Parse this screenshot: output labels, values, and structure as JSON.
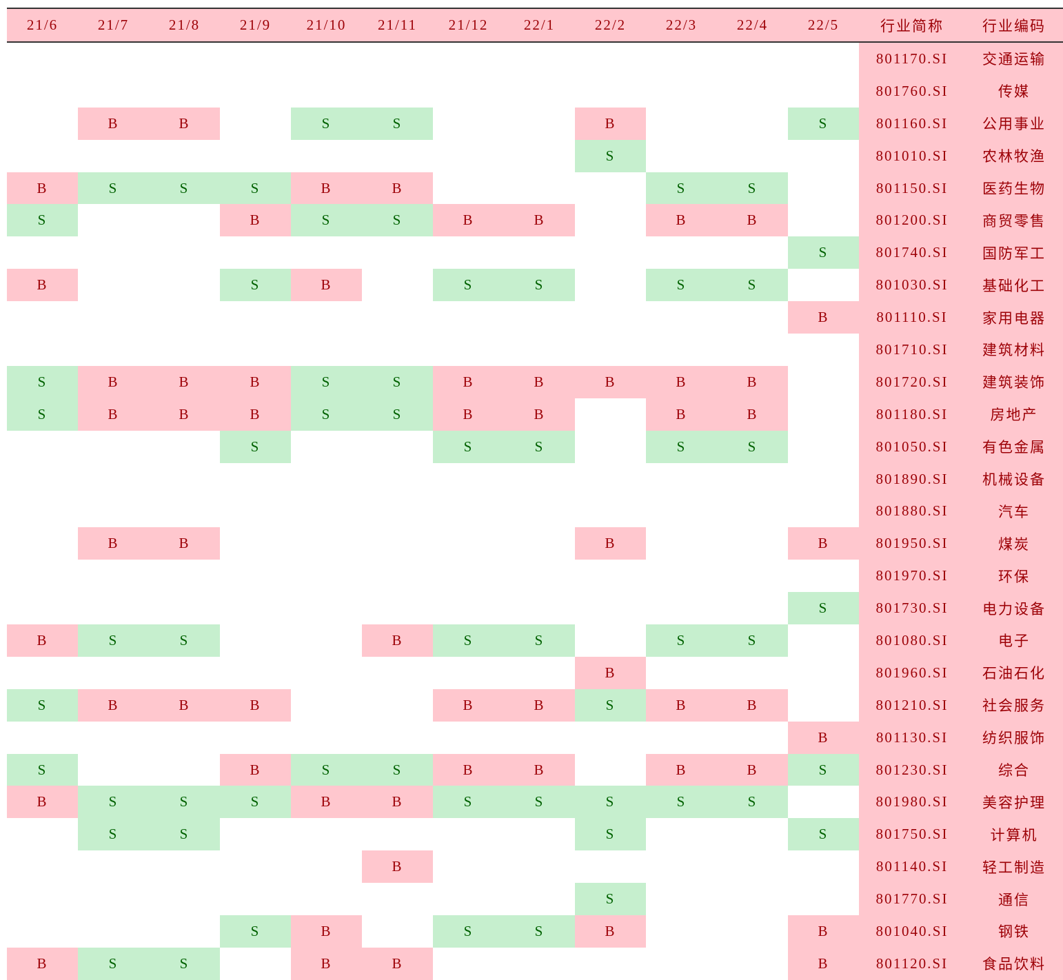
{
  "table": {
    "header": [
      "21/6",
      "21/7",
      "21/8",
      "21/9",
      "21/10",
      "21/11",
      "21/12",
      "22/1",
      "22/2",
      "22/3",
      "22/4",
      "22/5",
      "行业简称",
      "行业编码"
    ],
    "rows": [
      [
        null,
        null,
        null,
        null,
        null,
        null,
        null,
        null,
        null,
        null,
        null,
        null,
        "801170.SI",
        "交通运输"
      ],
      [
        null,
        null,
        null,
        null,
        null,
        null,
        null,
        null,
        null,
        null,
        null,
        null,
        "801760.SI",
        "传媒"
      ],
      [
        null,
        "B",
        "B",
        null,
        "S",
        "S",
        null,
        null,
        "B",
        null,
        null,
        "S",
        "801160.SI",
        "公用事业"
      ],
      [
        null,
        null,
        null,
        null,
        null,
        null,
        null,
        null,
        "S",
        null,
        null,
        null,
        "801010.SI",
        "农林牧渔"
      ],
      [
        "B",
        "S",
        "S",
        "S",
        "B",
        "B",
        null,
        null,
        null,
        "S",
        "S",
        null,
        "801150.SI",
        "医药生物"
      ],
      [
        "S",
        null,
        null,
        "B",
        "S",
        "S",
        "B",
        "B",
        null,
        "B",
        "B",
        null,
        "801200.SI",
        "商贸零售"
      ],
      [
        null,
        null,
        null,
        null,
        null,
        null,
        null,
        null,
        null,
        null,
        null,
        "S",
        "801740.SI",
        "国防军工"
      ],
      [
        "B",
        null,
        null,
        "S",
        "B",
        null,
        "S",
        "S",
        null,
        "S",
        "S",
        null,
        "801030.SI",
        "基础化工"
      ],
      [
        null,
        null,
        null,
        null,
        null,
        null,
        null,
        null,
        null,
        null,
        null,
        "B",
        "801110.SI",
        "家用电器"
      ],
      [
        null,
        null,
        null,
        null,
        null,
        null,
        null,
        null,
        null,
        null,
        null,
        null,
        "801710.SI",
        "建筑材料"
      ],
      [
        "S",
        "B",
        "B",
        "B",
        "S",
        "S",
        "B",
        "B",
        "B",
        "B",
        "B",
        null,
        "801720.SI",
        "建筑装饰"
      ],
      [
        "S",
        "B",
        "B",
        "B",
        "S",
        "S",
        "B",
        "B",
        null,
        "B",
        "B",
        null,
        "801180.SI",
        "房地产"
      ],
      [
        null,
        null,
        null,
        "S",
        null,
        null,
        "S",
        "S",
        null,
        "S",
        "S",
        null,
        "801050.SI",
        "有色金属"
      ],
      [
        null,
        null,
        null,
        null,
        null,
        null,
        null,
        null,
        null,
        null,
        null,
        null,
        "801890.SI",
        "机械设备"
      ],
      [
        null,
        null,
        null,
        null,
        null,
        null,
        null,
        null,
        null,
        null,
        null,
        null,
        "801880.SI",
        "汽车"
      ],
      [
        null,
        "B",
        "B",
        null,
        null,
        null,
        null,
        null,
        "B",
        null,
        null,
        "B",
        "801950.SI",
        "煤炭"
      ],
      [
        null,
        null,
        null,
        null,
        null,
        null,
        null,
        null,
        null,
        null,
        null,
        null,
        "801970.SI",
        "环保"
      ],
      [
        null,
        null,
        null,
        null,
        null,
        null,
        null,
        null,
        null,
        null,
        null,
        "S",
        "801730.SI",
        "电力设备"
      ],
      [
        "B",
        "S",
        "S",
        null,
        null,
        "B",
        "S",
        "S",
        null,
        "S",
        "S",
        null,
        "801080.SI",
        "电子"
      ],
      [
        null,
        null,
        null,
        null,
        null,
        null,
        null,
        null,
        "B",
        null,
        null,
        null,
        "801960.SI",
        "石油石化"
      ],
      [
        "S",
        "B",
        "B",
        "B",
        null,
        null,
        "B",
        "B",
        "S",
        "B",
        "B",
        null,
        "801210.SI",
        "社会服务"
      ],
      [
        null,
        null,
        null,
        null,
        null,
        null,
        null,
        null,
        null,
        null,
        null,
        "B",
        "801130.SI",
        "纺织服饰"
      ],
      [
        "S",
        null,
        null,
        "B",
        "S",
        "S",
        "B",
        "B",
        null,
        "B",
        "B",
        "S",
        "801230.SI",
        "综合"
      ],
      [
        "B",
        "S",
        "S",
        "S",
        "B",
        "B",
        "S",
        "S",
        "S",
        "S",
        "S",
        null,
        "801980.SI",
        "美容护理"
      ],
      [
        null,
        "S",
        "S",
        null,
        null,
        null,
        null,
        null,
        "S",
        null,
        null,
        "S",
        "801750.SI",
        "计算机"
      ],
      [
        null,
        null,
        null,
        null,
        null,
        "B",
        null,
        null,
        null,
        null,
        null,
        null,
        "801140.SI",
        "轻工制造"
      ],
      [
        null,
        null,
        null,
        null,
        null,
        null,
        null,
        null,
        "S",
        null,
        null,
        null,
        "801770.SI",
        "通信"
      ],
      [
        null,
        null,
        null,
        "S",
        "B",
        null,
        "S",
        "S",
        "B",
        null,
        null,
        "B",
        "801040.SI",
        "钢铁"
      ],
      [
        "B",
        "S",
        "S",
        null,
        "B",
        "B",
        null,
        null,
        null,
        null,
        null,
        "B",
        "801120.SI",
        "食品饮料"
      ]
    ]
  }
}
